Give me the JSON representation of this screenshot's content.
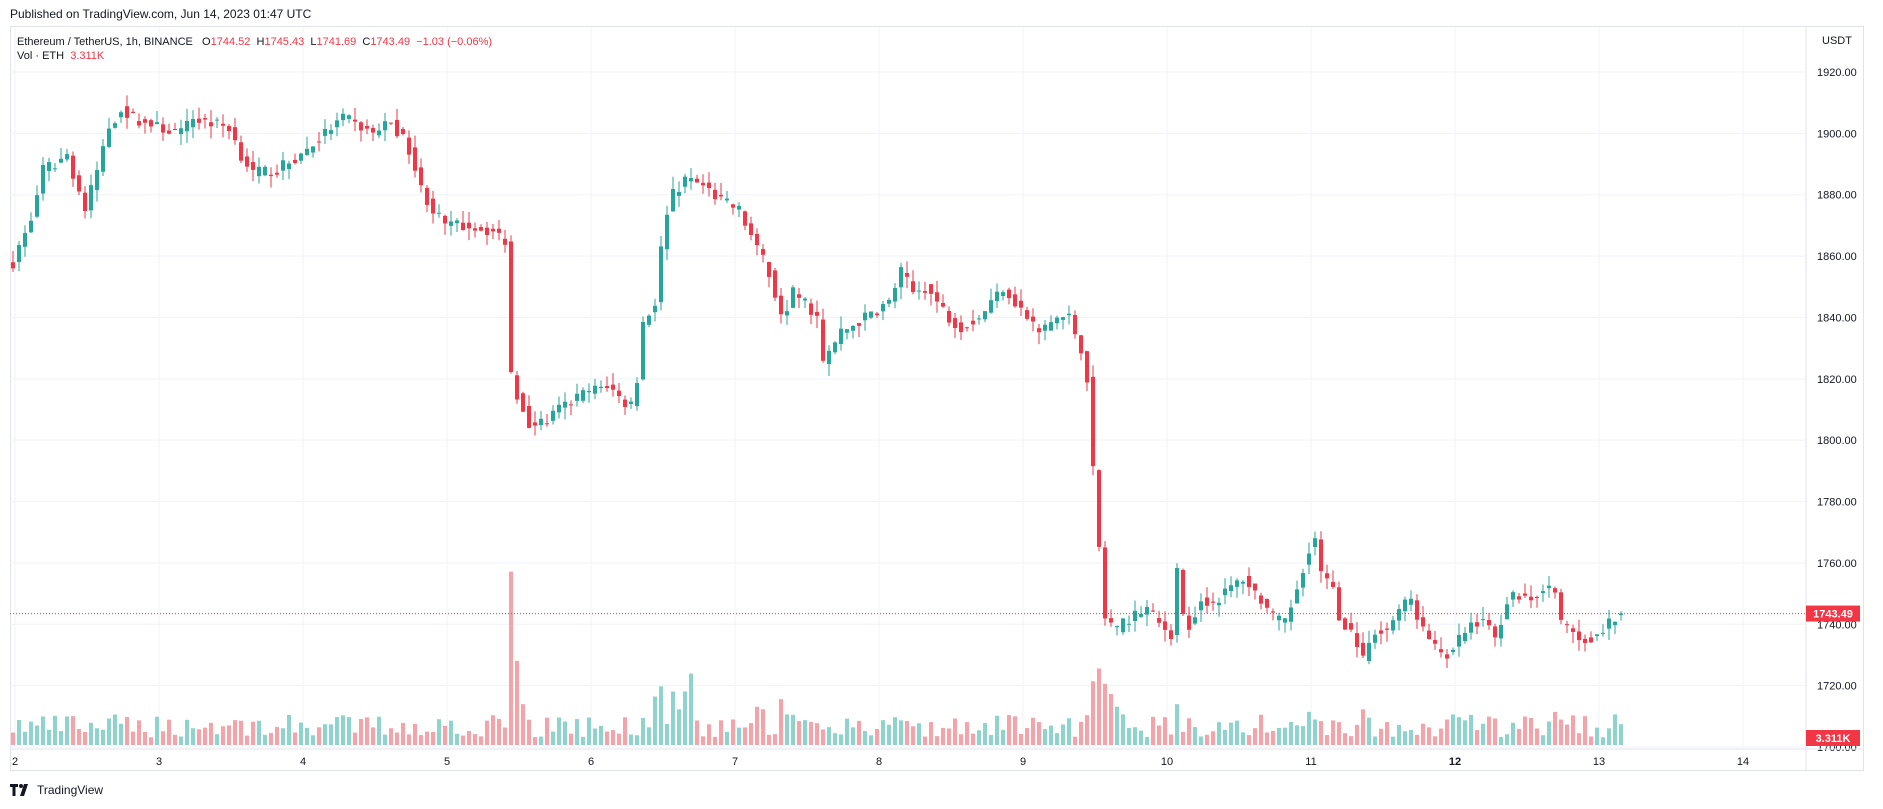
{
  "header": {
    "published": "Published on TradingView.com, Jun 14, 2023 01:47 UTC"
  },
  "legend": {
    "symbol": "Ethereum / TetherUS, 1h, BINANCE",
    "open_label": "O",
    "open": "1744.52",
    "high_label": "H",
    "high": "1745.43",
    "low_label": "L",
    "low": "1741.69",
    "close_label": "C",
    "close": "1743.49",
    "change": "−1.03 (−0.06%)",
    "vol_label": "Vol · ETH",
    "vol_value": "3.311K"
  },
  "footer": {
    "brand": "TradingView"
  },
  "colors": {
    "up": "#26a69a",
    "down": "#f23645",
    "vol_up": "#8fd4cc",
    "vol_down": "#f5a3a8",
    "grid": "#f0f3fa"
  },
  "chart_data": {
    "type": "candlestick",
    "currency_label": "USDT",
    "ylim": [
      1700,
      1928
    ],
    "y_ticks": [
      "1700.00",
      "1720.00",
      "1740.00",
      "1760.00",
      "1780.00",
      "1800.00",
      "1820.00",
      "1840.00",
      "1860.00",
      "1880.00",
      "1900.00",
      "1920.00"
    ],
    "x_ticks": [
      "2",
      "3",
      "4",
      "5",
      "6",
      "7",
      "8",
      "9",
      "10",
      "11",
      "12",
      "13",
      "14"
    ],
    "bold_x_ticks": [
      "12"
    ],
    "last_price_label": "1743.49",
    "last_volume_label": "3.311K",
    "volume_max": 7,
    "anchors": [
      [
        0,
        1858
      ],
      [
        3,
        1872
      ],
      [
        5,
        1888
      ],
      [
        7,
        1890
      ],
      [
        9,
        1893
      ],
      [
        12,
        1875
      ],
      [
        14,
        1888
      ],
      [
        16,
        1902
      ],
      [
        18,
        1908
      ],
      [
        20,
        1905
      ],
      [
        24,
        1902
      ],
      [
        28,
        1900
      ],
      [
        30,
        1905
      ],
      [
        34,
        1903
      ],
      [
        36,
        1902
      ],
      [
        38,
        1893
      ],
      [
        40,
        1887
      ],
      [
        44,
        1888
      ],
      [
        48,
        1893
      ],
      [
        52,
        1900
      ],
      [
        55,
        1905
      ],
      [
        58,
        1902
      ],
      [
        60,
        1900
      ],
      [
        63,
        1904
      ],
      [
        66,
        1895
      ],
      [
        68,
        1882
      ],
      [
        70,
        1875
      ],
      [
        72,
        1870
      ],
      [
        76,
        1870
      ],
      [
        80,
        1868
      ],
      [
        82,
        1865
      ],
      [
        83,
        1822
      ],
      [
        84,
        1815
      ],
      [
        86,
        1806
      ],
      [
        88,
        1805
      ],
      [
        91,
        1810
      ],
      [
        95,
        1815
      ],
      [
        99,
        1818
      ],
      [
        102,
        1812
      ],
      [
        103,
        1812
      ],
      [
        104,
        1820
      ],
      [
        105,
        1838
      ],
      [
        107,
        1845
      ],
      [
        108,
        1862
      ],
      [
        109,
        1875
      ],
      [
        110,
        1880
      ],
      [
        112,
        1885
      ],
      [
        115,
        1883
      ],
      [
        118,
        1878
      ],
      [
        121,
        1875
      ],
      [
        124,
        1862
      ],
      [
        126,
        1855
      ],
      [
        128,
        1840
      ],
      [
        130,
        1848
      ],
      [
        132,
        1845
      ],
      [
        134,
        1840
      ],
      [
        135,
        1825
      ],
      [
        138,
        1835
      ],
      [
        142,
        1840
      ],
      [
        146,
        1845
      ],
      [
        148,
        1855
      ],
      [
        150,
        1848
      ],
      [
        152,
        1850
      ],
      [
        154,
        1845
      ],
      [
        156,
        1840
      ],
      [
        158,
        1837
      ],
      [
        161,
        1840
      ],
      [
        163,
        1845
      ],
      [
        165,
        1850
      ],
      [
        167,
        1845
      ],
      [
        169,
        1840
      ],
      [
        171,
        1835
      ],
      [
        174,
        1840
      ],
      [
        176,
        1840
      ],
      [
        178,
        1830
      ],
      [
        179,
        1820
      ],
      [
        180,
        1790
      ],
      [
        181,
        1765
      ],
      [
        182,
        1742
      ],
      [
        184,
        1738
      ],
      [
        186,
        1742
      ],
      [
        189,
        1745
      ],
      [
        191,
        1740
      ],
      [
        193,
        1737
      ],
      [
        194,
        1758
      ],
      [
        195,
        1742
      ],
      [
        196,
        1740
      ],
      [
        198,
        1748
      ],
      [
        200,
        1747
      ],
      [
        203,
        1752
      ],
      [
        205,
        1755
      ],
      [
        208,
        1748
      ],
      [
        210,
        1742
      ],
      [
        212,
        1740
      ],
      [
        214,
        1752
      ],
      [
        216,
        1765
      ],
      [
        217,
        1768
      ],
      [
        218,
        1756
      ],
      [
        220,
        1752
      ],
      [
        221,
        1742
      ],
      [
        223,
        1738
      ],
      [
        225,
        1728
      ],
      [
        227,
        1738
      ],
      [
        229,
        1738
      ],
      [
        231,
        1745
      ],
      [
        233,
        1748
      ],
      [
        235,
        1738
      ],
      [
        237,
        1732
      ],
      [
        239,
        1730
      ],
      [
        241,
        1735
      ],
      [
        243,
        1740
      ],
      [
        245,
        1742
      ],
      [
        247,
        1735
      ],
      [
        249,
        1748
      ],
      [
        251,
        1750
      ],
      [
        253,
        1748
      ],
      [
        255,
        1752
      ],
      [
        257,
        1750
      ],
      [
        258,
        1740
      ],
      [
        260,
        1737
      ],
      [
        262,
        1735
      ],
      [
        264,
        1737
      ],
      [
        265,
        1738
      ],
      [
        267,
        1742
      ],
      [
        268,
        1743.49
      ]
    ],
    "volume_events": [
      [
        83,
        6.8
      ],
      [
        84,
        3.3
      ],
      [
        85,
        1.6
      ],
      [
        107,
        1.9
      ],
      [
        108,
        2.3
      ],
      [
        110,
        2.1
      ],
      [
        111,
        1.4
      ],
      [
        112,
        2.1
      ],
      [
        113,
        2.8
      ],
      [
        124,
        1.5
      ],
      [
        125,
        1.4
      ],
      [
        128,
        1.8
      ],
      [
        129,
        1.2
      ],
      [
        180,
        2.5
      ],
      [
        181,
        3.0
      ],
      [
        182,
        2.4
      ],
      [
        183,
        2.0
      ],
      [
        184,
        1.5
      ],
      [
        185,
        1.2
      ],
      [
        194,
        1.6
      ],
      [
        216,
        1.3
      ],
      [
        217,
        1.0
      ],
      [
        225,
        1.4
      ],
      [
        239,
        1.0
      ],
      [
        240,
        1.2
      ],
      [
        257,
        1.3
      ],
      [
        258,
        1.0
      ],
      [
        259,
        0.8
      ]
    ]
  }
}
